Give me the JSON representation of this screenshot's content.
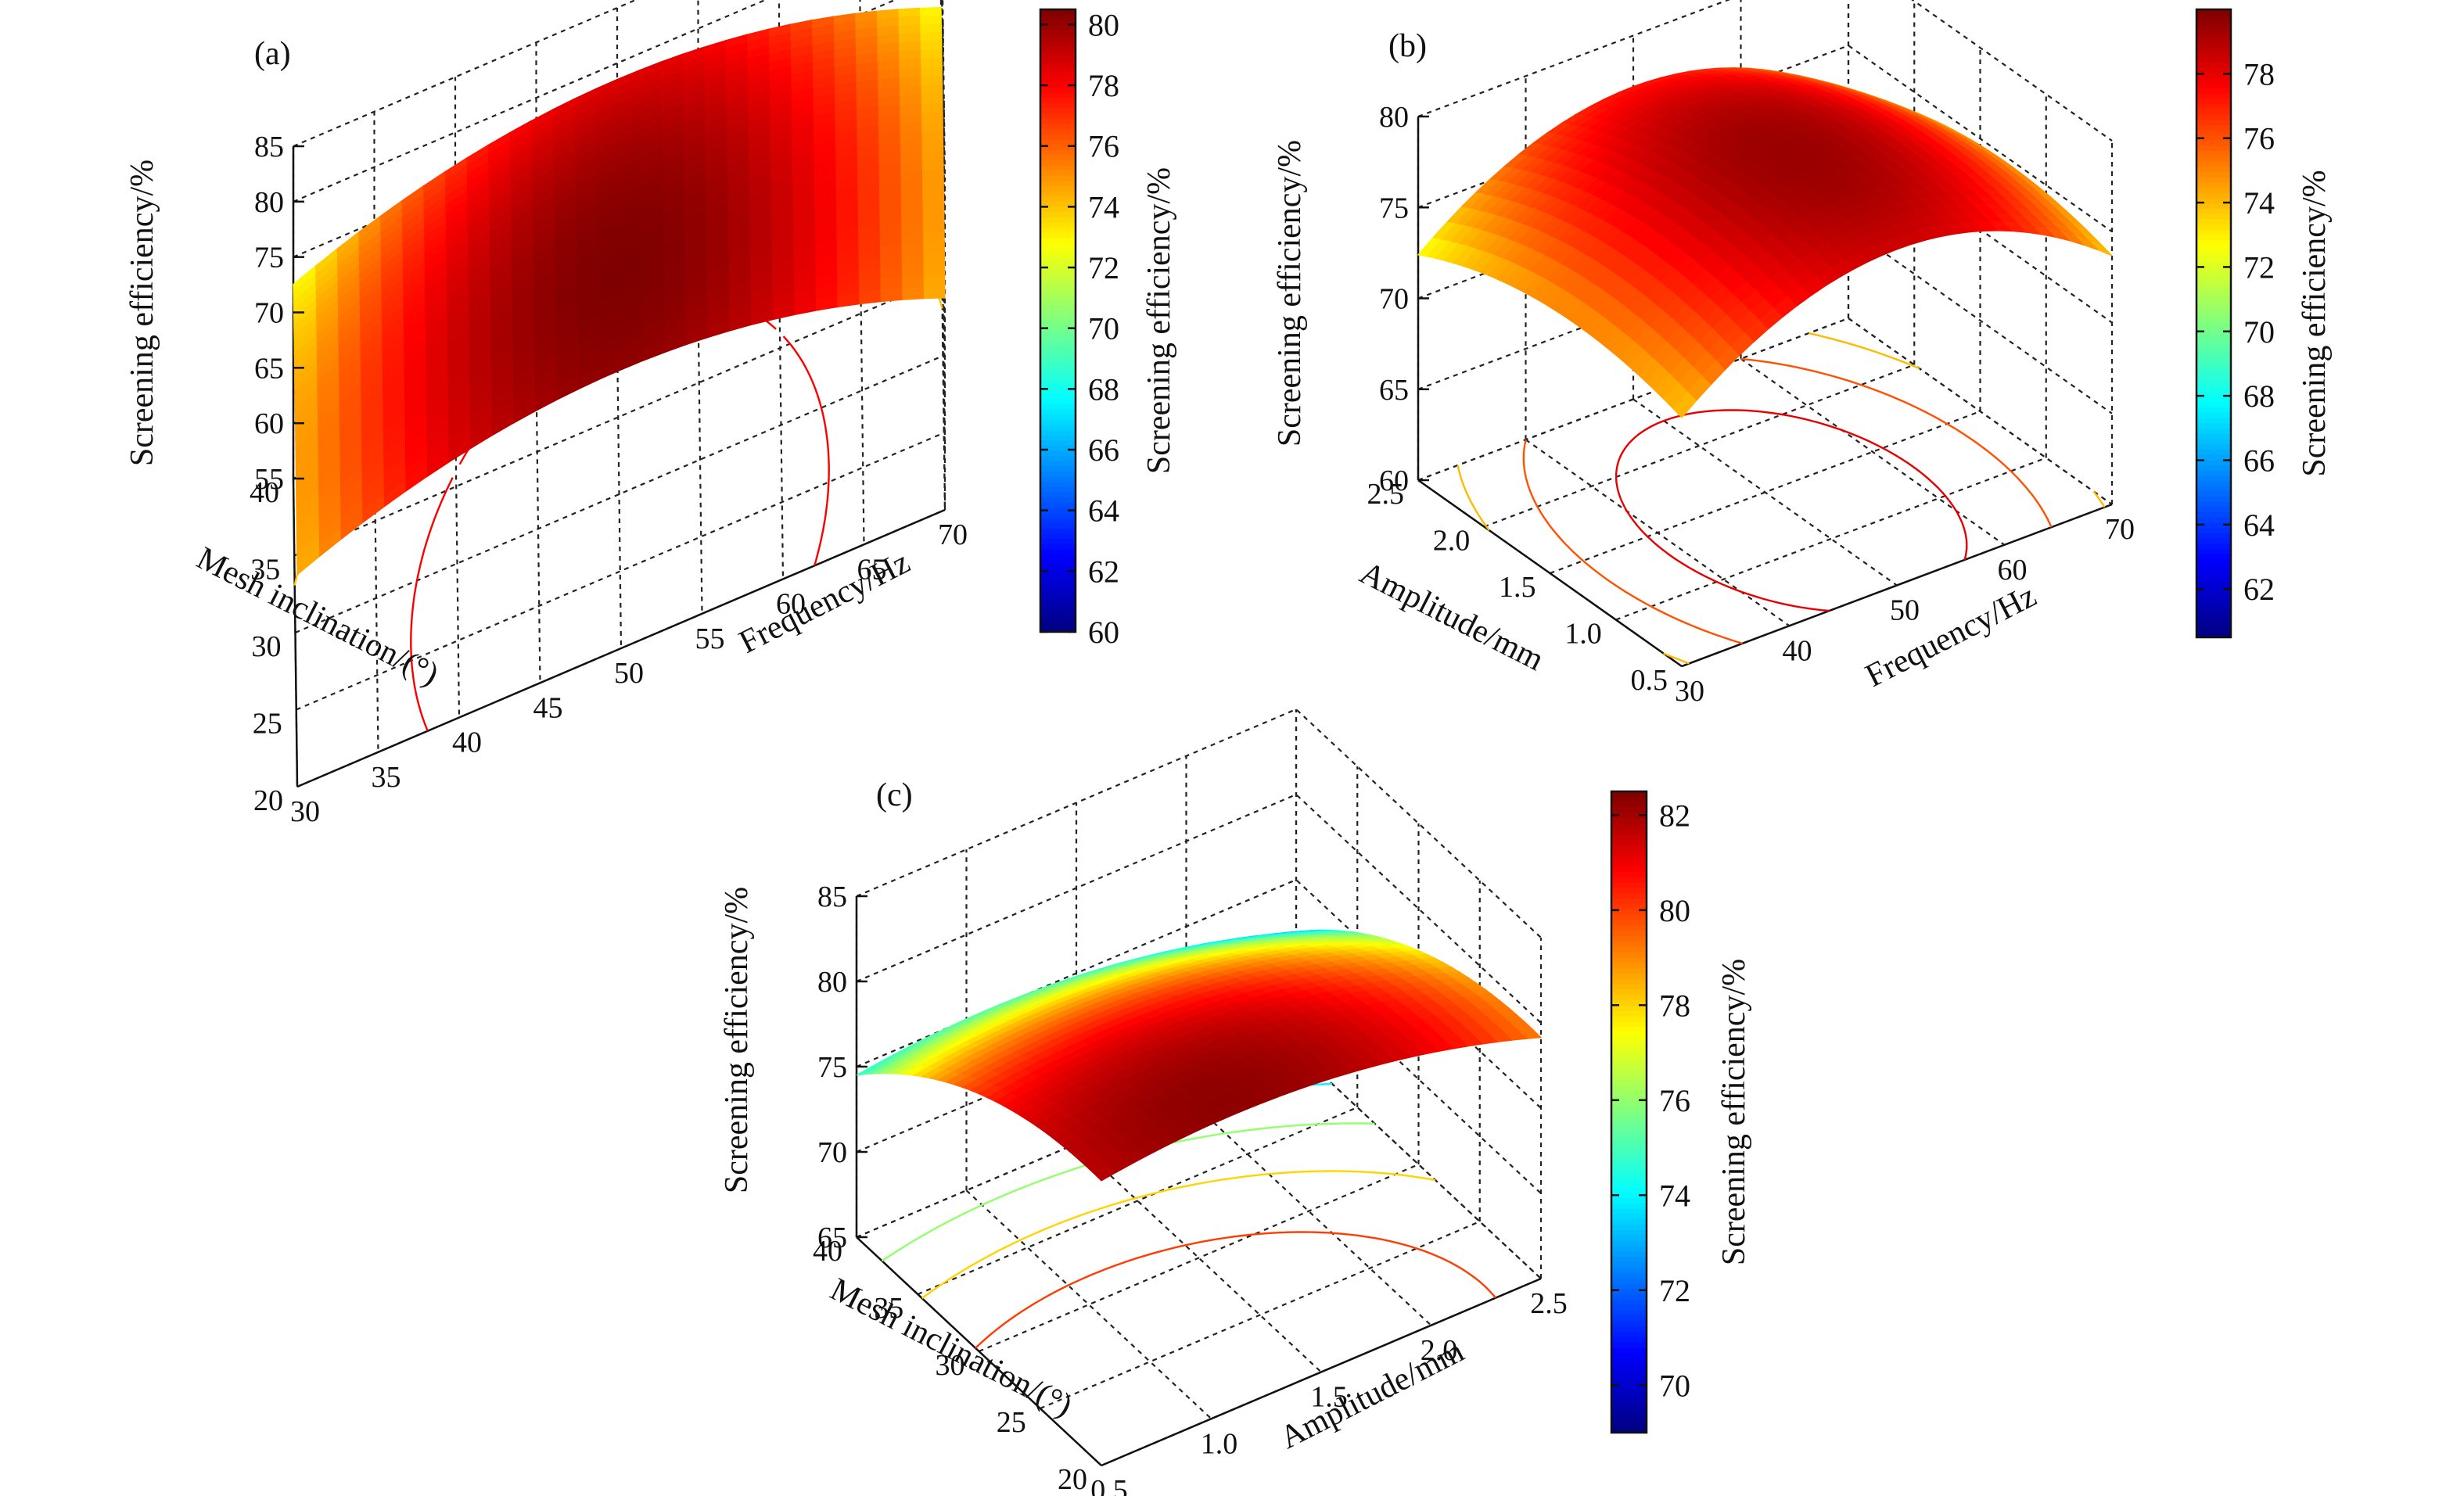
{
  "colormap": [
    "#00007f",
    "#0000ff",
    "#007fff",
    "#00ffff",
    "#7fff7f",
    "#ffff00",
    "#ff7f00",
    "#ff0000",
    "#7f0000"
  ],
  "chart_data": [
    {
      "panel": "(a)",
      "type": "surface",
      "xlabel": "Frequency/Hz",
      "ylabel": "Mesh inclination/(°)",
      "zlabel": "Screening efficiency/%",
      "xlim": [
        30,
        70
      ],
      "ylim": [
        20,
        40
      ],
      "zlim": [
        55,
        85
      ],
      "x_ticks": [
        "30",
        "35",
        "40",
        "45",
        "50",
        "55",
        "60",
        "65",
        "70"
      ],
      "y_ticks": [
        "20",
        "25",
        "30",
        "35",
        "40"
      ],
      "z_ticks": [
        "55",
        "60",
        "65",
        "70",
        "75",
        "80",
        "85"
      ],
      "colorbar_label": "Screening efficiency/%",
      "colorbar_range": [
        60,
        80.5
      ],
      "colorbar_ticks": [
        "60",
        "62",
        "64",
        "66",
        "68",
        "70",
        "72",
        "74",
        "76",
        "78",
        "80"
      ],
      "model": {
        "c0": 80.5,
        "x0": 50,
        "ax": 0.015,
        "y0": 26,
        "ay": 0.01
      },
      "contour_levels": [
        62,
        66,
        70,
        74,
        78
      ]
    },
    {
      "panel": "(b)",
      "type": "surface",
      "xlabel": "Frequency/Hz",
      "ylabel": "Amplitude/mm",
      "zlabel": "Screening efficiency/%",
      "xlim": [
        30,
        70
      ],
      "ylim": [
        0.5,
        2.5
      ],
      "zlim": [
        60,
        80
      ],
      "x_ticks": [
        "30",
        "40",
        "50",
        "60",
        "70"
      ],
      "y_ticks": [
        "0.5",
        "1.0",
        "1.5",
        "2.0",
        "2.5"
      ],
      "z_ticks": [
        "60",
        "65",
        "70",
        "75",
        "80"
      ],
      "colorbar_label": "Screening efficiency/%",
      "colorbar_range": [
        60.5,
        80
      ],
      "colorbar_ticks": [
        "62",
        "64",
        "66",
        "68",
        "70",
        "72",
        "74",
        "76",
        "78"
      ],
      "model": {
        "c0": 79.5,
        "x0": 50,
        "ax": 0.012,
        "y0": 1.3,
        "ay": 1.6
      },
      "contour_levels": [
        64,
        66,
        68,
        70,
        72,
        74,
        76,
        78
      ]
    },
    {
      "panel": "(c)",
      "type": "surface",
      "xlabel": "Amplitude/mm",
      "ylabel": "Mesh inclination/(°)",
      "zlabel": "Screening efficiency/%",
      "xlim": [
        0.5,
        2.5
      ],
      "ylim": [
        20,
        40
      ],
      "zlim": [
        65,
        85
      ],
      "x_ticks": [
        "0.5",
        "1.0",
        "1.5",
        "2.0",
        "2.5"
      ],
      "y_ticks": [
        "20",
        "25",
        "30",
        "35",
        "40"
      ],
      "z_ticks": [
        "65",
        "70",
        "75",
        "80",
        "85"
      ],
      "colorbar_label": "Screening efficiency/%",
      "colorbar_range": [
        69,
        82.5
      ],
      "colorbar_ticks": [
        "70",
        "72",
        "74",
        "76",
        "78",
        "80",
        "82"
      ],
      "model": {
        "c0": 82.3,
        "x0": 1.1,
        "ax": 1.6,
        "y0": 21,
        "ay": 0.02
      },
      "contour_levels": [
        72,
        74,
        76,
        78,
        80
      ]
    }
  ]
}
